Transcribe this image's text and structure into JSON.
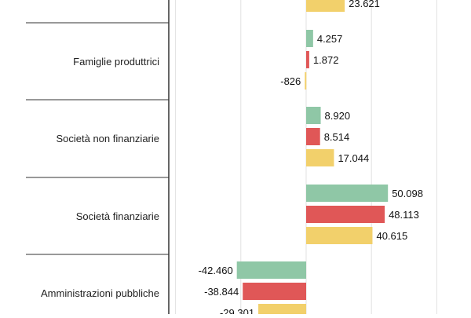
{
  "chart_data": {
    "type": "bar",
    "orientation": "horizontal",
    "categories": [
      "",
      "Famiglie produttrici",
      "Società non finanziarie",
      "Società finanziarie",
      "Amministrazioni pubbliche"
    ],
    "series": [
      {
        "color": "#8fc7a6",
        "values": [
          null,
          4257,
          8920,
          50098,
          -42460
        ]
      },
      {
        "color": "#e05757",
        "values": [
          null,
          1872,
          8514,
          48113,
          -38844
        ]
      },
      {
        "color": "#f2d06b",
        "values": [
          23621,
          -826,
          17044,
          40615,
          -29301
        ]
      }
    ],
    "value_labels": [
      [
        null,
        "4.257",
        "8.920",
        "50.098",
        "-42.460"
      ],
      [
        null,
        "1.872",
        "8.514",
        "48.113",
        "-38.844"
      ],
      [
        "23.621",
        "-826",
        "17.044",
        "40.615",
        "-29.301"
      ]
    ],
    "xlim": [
      -50000,
      50000
    ],
    "grid": true
  }
}
